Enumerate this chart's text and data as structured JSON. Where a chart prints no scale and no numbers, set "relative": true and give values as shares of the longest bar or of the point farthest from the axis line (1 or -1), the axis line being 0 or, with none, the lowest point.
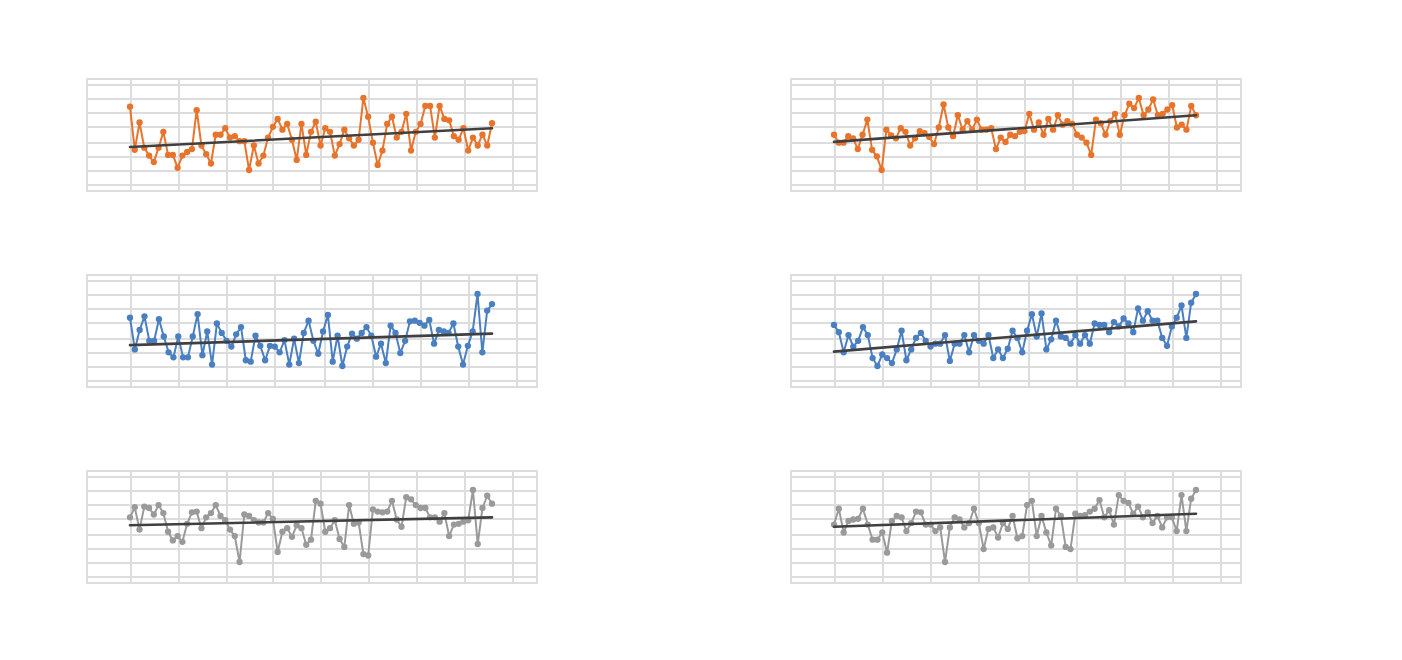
{
  "chart_data": [
    {
      "type": "line",
      "relative": true,
      "grid": true,
      "tick_labels": false,
      "marker": "circle",
      "line_style": "solid",
      "categories": [
        null,
        null,
        null,
        null,
        null,
        null,
        null,
        null,
        null,
        null,
        null,
        null,
        null,
        null,
        null,
        null,
        null,
        null,
        null,
        null,
        null,
        null,
        null,
        null,
        null,
        null,
        null,
        null,
        null,
        null,
        null,
        null,
        null,
        null,
        null,
        null,
        null,
        null,
        null,
        null,
        null,
        null,
        null,
        null,
        null,
        null,
        null,
        null,
        null,
        null,
        null,
        null,
        null,
        null,
        null,
        null,
        null,
        null,
        null,
        null,
        null,
        null,
        null,
        null,
        null,
        null,
        null,
        null,
        null,
        null,
        null,
        null,
        null,
        null,
        null,
        null,
        null
      ],
      "series": [
        {
          "color": "#e8742c",
          "values": [
            0.88,
            0.28,
            0.66,
            0.31,
            0.2,
            0.11,
            0.31,
            0.53,
            0.21,
            0.21,
            0.03,
            0.2,
            0.25,
            0.29,
            0.83,
            0.34,
            0.22,
            0.09,
            0.49,
            0.49,
            0.58,
            0.45,
            0.47,
            0.4,
            0.4,
            0,
            0.34,
            0.09,
            0.2,
            0.45,
            0.6,
            0.71,
            0.56,
            0.64,
            0.42,
            0.14,
            0.64,
            0.21,
            0.53,
            0.67,
            0.34,
            0.58,
            0.53,
            0.2,
            0.36,
            0.56,
            0.44,
            0.34,
            0.42,
            1,
            0.74,
            0.38,
            0.07,
            0.27,
            0.64,
            0.74,
            0.45,
            0.53,
            0.78,
            0.27,
            0.53,
            0.64,
            0.89,
            0.89,
            0.45,
            0.89,
            0.71,
            0.69,
            0.47,
            0.42,
            0.58,
            0.27,
            0.45,
            0.34,
            0.49,
            0.34,
            0.65
          ]
        },
        {
          "type": "line",
          "marker": "none",
          "color": "#404040",
          "values": [
            0.32,
            null,
            null,
            null,
            null,
            null,
            null,
            null,
            null,
            null,
            null,
            null,
            null,
            null,
            null,
            null,
            null,
            null,
            null,
            null,
            null,
            null,
            null,
            null,
            null,
            null,
            null,
            null,
            null,
            null,
            null,
            null,
            null,
            null,
            null,
            null,
            null,
            null,
            null,
            null,
            null,
            null,
            null,
            null,
            null,
            null,
            null,
            null,
            null,
            null,
            null,
            null,
            null,
            null,
            null,
            null,
            null,
            null,
            null,
            null,
            null,
            null,
            null,
            null,
            null,
            null,
            null,
            null,
            null,
            null,
            null,
            null,
            null,
            null,
            null,
            null,
            0.58
          ]
        }
      ]
    },
    {
      "type": "line",
      "relative": true,
      "grid": true,
      "tick_labels": false,
      "marker": "circle",
      "line_style": "solid",
      "categories": [
        null,
        null,
        null,
        null,
        null,
        null,
        null,
        null,
        null,
        null,
        null,
        null,
        null,
        null,
        null,
        null,
        null,
        null,
        null,
        null,
        null,
        null,
        null,
        null,
        null,
        null,
        null,
        null,
        null,
        null,
        null,
        null,
        null,
        null,
        null,
        null,
        null,
        null,
        null,
        null,
        null,
        null,
        null,
        null,
        null,
        null,
        null,
        null,
        null,
        null,
        null,
        null,
        null,
        null,
        null,
        null,
        null,
        null,
        null,
        null,
        null,
        null,
        null,
        null,
        null,
        null,
        null,
        null,
        null,
        null,
        null,
        null,
        null,
        null,
        null,
        null,
        null
      ],
      "series": [
        {
          "color": "#e8742c",
          "values": [
            0.49,
            0.38,
            0.38,
            0.47,
            0.44,
            0.29,
            0.49,
            0.7,
            0.28,
            0.19,
            0,
            0.56,
            0.48,
            0.44,
            0.58,
            0.53,
            0.34,
            0.44,
            0.54,
            0.51,
            0.46,
            0.36,
            0.59,
            0.91,
            0.59,
            0.47,
            0.76,
            0.56,
            0.68,
            0.56,
            0.7,
            0.56,
            0.56,
            0.58,
            0.29,
            0.45,
            0.39,
            0.49,
            0.47,
            0.53,
            0.54,
            0.78,
            0.56,
            0.66,
            0.49,
            0.71,
            0.56,
            0.76,
            0.63,
            0.68,
            0.64,
            0.49,
            0.45,
            0.38,
            0.21,
            0.7,
            0.65,
            0.49,
            0.68,
            0.78,
            0.49,
            0.76,
            0.92,
            0.86,
            1,
            0.76,
            0.84,
            0.98,
            0.76,
            0.78,
            0.84,
            0.9,
            0.59,
            0.63,
            0.56,
            0.89,
            0.76
          ]
        },
        {
          "type": "line",
          "marker": "none",
          "color": "#404040",
          "values": [
            0.39,
            null,
            null,
            null,
            null,
            null,
            null,
            null,
            null,
            null,
            null,
            null,
            null,
            null,
            null,
            null,
            null,
            null,
            null,
            null,
            null,
            null,
            null,
            null,
            null,
            null,
            null,
            null,
            null,
            null,
            null,
            null,
            null,
            null,
            null,
            null,
            null,
            null,
            null,
            null,
            null,
            null,
            null,
            null,
            null,
            null,
            null,
            null,
            null,
            null,
            null,
            null,
            null,
            null,
            null,
            null,
            null,
            null,
            null,
            null,
            null,
            null,
            null,
            null,
            null,
            null,
            null,
            null,
            null,
            null,
            null,
            null,
            null,
            null,
            null,
            null,
            0.76
          ]
        }
      ]
    },
    {
      "type": "line",
      "relative": true,
      "grid": true,
      "tick_labels": false,
      "marker": "circle",
      "line_style": "solid",
      "categories": [
        null,
        null,
        null,
        null,
        null,
        null,
        null,
        null,
        null,
        null,
        null,
        null,
        null,
        null,
        null,
        null,
        null,
        null,
        null,
        null,
        null,
        null,
        null,
        null,
        null,
        null,
        null,
        null,
        null,
        null,
        null,
        null,
        null,
        null,
        null,
        null,
        null,
        null,
        null,
        null,
        null,
        null,
        null,
        null,
        null,
        null,
        null,
        null,
        null,
        null,
        null,
        null,
        null,
        null,
        null,
        null,
        null,
        null,
        null,
        null,
        null,
        null,
        null,
        null,
        null,
        null,
        null,
        null,
        null,
        null,
        null,
        null,
        null,
        null,
        null,
        null
      ],
      "series": [
        {
          "color": "#4a7fc1",
          "values": [
            0.67,
            0.23,
            0.5,
            0.69,
            0.35,
            0.35,
            0.65,
            0.41,
            0.19,
            0.12,
            0.41,
            0.12,
            0.12,
            0.41,
            0.72,
            0.15,
            0.48,
            0.02,
            0.59,
            0.46,
            0.35,
            0.27,
            0.44,
            0.54,
            0.08,
            0.06,
            0.42,
            0.28,
            0.08,
            0.28,
            0.27,
            0.19,
            0.36,
            0.02,
            0.38,
            0.04,
            0.46,
            0.63,
            0.35,
            0.17,
            0.48,
            0.71,
            0.06,
            0.42,
            0,
            0.27,
            0.45,
            0.38,
            0.46,
            0.54,
            0.42,
            0.13,
            0.31,
            0.04,
            0.56,
            0.46,
            0.18,
            0.35,
            0.62,
            0.63,
            0.6,
            0.56,
            0.64,
            0.31,
            0.5,
            0.48,
            0.46,
            0.59,
            0.27,
            0.02,
            0.28,
            0.48,
            1,
            0.19,
            0.77,
            0.86
          ]
        },
        {
          "type": "line",
          "marker": "none",
          "color": "#404040",
          "values": [
            0.29,
            null,
            null,
            null,
            null,
            null,
            null,
            null,
            null,
            null,
            null,
            null,
            null,
            null,
            null,
            null,
            null,
            null,
            null,
            null,
            null,
            null,
            null,
            null,
            null,
            null,
            null,
            null,
            null,
            null,
            null,
            null,
            null,
            null,
            null,
            null,
            null,
            null,
            null,
            null,
            null,
            null,
            null,
            null,
            null,
            null,
            null,
            null,
            null,
            null,
            null,
            null,
            null,
            null,
            null,
            null,
            null,
            null,
            null,
            null,
            null,
            null,
            null,
            null,
            null,
            null,
            null,
            null,
            null,
            null,
            null,
            null,
            null,
            null,
            null,
            0.45
          ]
        }
      ]
    },
    {
      "type": "line",
      "relative": true,
      "grid": true,
      "tick_labels": false,
      "marker": "circle",
      "line_style": "solid",
      "categories": [
        null,
        null,
        null,
        null,
        null,
        null,
        null,
        null,
        null,
        null,
        null,
        null,
        null,
        null,
        null,
        null,
        null,
        null,
        null,
        null,
        null,
        null,
        null,
        null,
        null,
        null,
        null,
        null,
        null,
        null,
        null,
        null,
        null,
        null,
        null,
        null,
        null,
        null,
        null,
        null,
        null,
        null,
        null,
        null,
        null,
        null,
        null,
        null,
        null,
        null,
        null,
        null,
        null,
        null,
        null,
        null,
        null,
        null,
        null,
        null,
        null,
        null,
        null,
        null,
        null,
        null,
        null,
        null,
        null,
        null,
        null,
        null,
        null,
        null,
        null,
        null
      ],
      "series": [
        {
          "color": "#4a7fc1",
          "values": [
            0.57,
            0.47,
            0.19,
            0.43,
            0.27,
            0.35,
            0.54,
            0.43,
            0.11,
            0,
            0.16,
            0.11,
            0.04,
            0.23,
            0.49,
            0.08,
            0.23,
            0.39,
            0.46,
            0.35,
            0.27,
            0.31,
            0.31,
            0.43,
            0.07,
            0.31,
            0.31,
            0.43,
            0.19,
            0.43,
            0.35,
            0.31,
            0.43,
            0.11,
            0.23,
            0.11,
            0.24,
            0.49,
            0.39,
            0.19,
            0.49,
            0.72,
            0.41,
            0.73,
            0.23,
            0.37,
            0.63,
            0.41,
            0.39,
            0.31,
            0.43,
            0.31,
            0.43,
            0.31,
            0.59,
            0.57,
            0.57,
            0.47,
            0.61,
            0.55,
            0.66,
            0.59,
            0.47,
            0.8,
            0.63,
            0.76,
            0.63,
            0.63,
            0.39,
            0.28,
            0.55,
            0.67,
            0.84,
            0.39,
            0.88,
            1
          ]
        },
        {
          "type": "line",
          "marker": "none",
          "color": "#404040",
          "values": [
            0.2,
            null,
            null,
            null,
            null,
            null,
            null,
            null,
            null,
            null,
            null,
            null,
            null,
            null,
            null,
            null,
            null,
            null,
            null,
            null,
            null,
            null,
            null,
            null,
            null,
            null,
            null,
            null,
            null,
            null,
            null,
            null,
            null,
            null,
            null,
            null,
            null,
            null,
            null,
            null,
            null,
            null,
            null,
            null,
            null,
            null,
            null,
            null,
            null,
            null,
            null,
            null,
            null,
            null,
            null,
            null,
            null,
            null,
            null,
            null,
            null,
            null,
            null,
            null,
            null,
            null,
            null,
            null,
            null,
            null,
            null,
            null,
            null,
            null,
            null,
            0.62
          ]
        }
      ]
    },
    {
      "type": "line",
      "relative": true,
      "grid": true,
      "tick_labels": false,
      "marker": "circle",
      "line_style": "solid",
      "categories": [
        null,
        null,
        null,
        null,
        null,
        null,
        null,
        null,
        null,
        null,
        null,
        null,
        null,
        null,
        null,
        null,
        null,
        null,
        null,
        null,
        null,
        null,
        null,
        null,
        null,
        null,
        null,
        null,
        null,
        null,
        null,
        null,
        null,
        null,
        null,
        null,
        null,
        null,
        null,
        null,
        null,
        null,
        null,
        null,
        null,
        null,
        null,
        null,
        null,
        null,
        null,
        null,
        null,
        null,
        null,
        null,
        null,
        null,
        null,
        null,
        null,
        null,
        null,
        null,
        null,
        null,
        null,
        null,
        null,
        null,
        null,
        null,
        null,
        null,
        null,
        null,
        null
      ],
      "series": [
        {
          "color": "#9a9a9a",
          "values": [
            0.62,
            0.76,
            0.45,
            0.77,
            0.75,
            0.66,
            0.79,
            0.68,
            0.42,
            0.3,
            0.36,
            0.28,
            0.53,
            0.69,
            0.7,
            0.47,
            0.62,
            0.68,
            0.79,
            0.64,
            0.58,
            0.45,
            0.36,
            0,
            0.66,
            0.64,
            0.58,
            0.55,
            0.55,
            0.68,
            0.6,
            0.14,
            0.42,
            0.47,
            0.35,
            0.51,
            0.47,
            0.24,
            0.31,
            0.85,
            0.81,
            0.42,
            0.47,
            0.58,
            0.32,
            0.21,
            0.79,
            0.53,
            0.55,
            0.11,
            0.09,
            0.73,
            0.7,
            0.69,
            0.7,
            0.85,
            0.59,
            0.49,
            0.9,
            0.87,
            0.79,
            0.75,
            0.75,
            0.62,
            0.62,
            0.56,
            0.68,
            0.36,
            0.52,
            0.53,
            0.56,
            0.58,
            1,
            0.25,
            0.75,
            0.92,
            0.81
          ]
        },
        {
          "type": "line",
          "marker": "none",
          "color": "#404040",
          "values": [
            0.51,
            null,
            null,
            null,
            null,
            null,
            null,
            null,
            null,
            null,
            null,
            null,
            null,
            null,
            null,
            null,
            null,
            null,
            null,
            null,
            null,
            null,
            null,
            null,
            null,
            null,
            null,
            null,
            null,
            null,
            null,
            null,
            null,
            null,
            null,
            null,
            null,
            null,
            null,
            null,
            null,
            null,
            null,
            null,
            null,
            null,
            null,
            null,
            null,
            null,
            null,
            null,
            null,
            null,
            null,
            null,
            null,
            null,
            null,
            null,
            null,
            null,
            null,
            null,
            null,
            null,
            null,
            null,
            null,
            null,
            null,
            null,
            null,
            null,
            null,
            null,
            0.62
          ]
        }
      ]
    },
    {
      "type": "line",
      "relative": true,
      "grid": true,
      "tick_labels": false,
      "marker": "circle",
      "line_style": "solid",
      "categories": [
        null,
        null,
        null,
        null,
        null,
        null,
        null,
        null,
        null,
        null,
        null,
        null,
        null,
        null,
        null,
        null,
        null,
        null,
        null,
        null,
        null,
        null,
        null,
        null,
        null,
        null,
        null,
        null,
        null,
        null,
        null,
        null,
        null,
        null,
        null,
        null,
        null,
        null,
        null,
        null,
        null,
        null,
        null,
        null,
        null,
        null,
        null,
        null,
        null,
        null,
        null,
        null,
        null,
        null,
        null,
        null,
        null,
        null,
        null,
        null,
        null,
        null,
        null,
        null,
        null,
        null,
        null,
        null,
        null,
        null,
        null,
        null,
        null,
        null,
        null,
        null
      ],
      "series": [
        {
          "color": "#9a9a9a",
          "values": [
            0.52,
            0.74,
            0.41,
            0.57,
            0.59,
            0.6,
            0.74,
            0.52,
            0.31,
            0.31,
            0.41,
            0.13,
            0.57,
            0.64,
            0.62,
            0.43,
            0.54,
            0.7,
            0.69,
            0.52,
            0.52,
            0.43,
            0.48,
            0,
            0.48,
            0.62,
            0.59,
            0.48,
            0.54,
            0.74,
            0.54,
            0.18,
            0.46,
            0.48,
            0.34,
            0.54,
            0.46,
            0.64,
            0.33,
            0.36,
            0.79,
            0.85,
            0.36,
            0.64,
            0.41,
            0.23,
            0.74,
            0.64,
            0.21,
            0.18,
            0.67,
            0.64,
            0.65,
            0.7,
            0.74,
            0.86,
            0.62,
            0.72,
            0.52,
            0.93,
            0.85,
            0.82,
            0.67,
            0.77,
            0.62,
            0.69,
            0.54,
            0.64,
            0.48,
            0.62,
            0.62,
            0.43,
            0.93,
            0.43,
            0.88,
            1
          ]
        },
        {
          "type": "line",
          "marker": "none",
          "color": "#404040",
          "values": [
            0.49,
            null,
            null,
            null,
            null,
            null,
            null,
            null,
            null,
            null,
            null,
            null,
            null,
            null,
            null,
            null,
            null,
            null,
            null,
            null,
            null,
            null,
            null,
            null,
            null,
            null,
            null,
            null,
            null,
            null,
            null,
            null,
            null,
            null,
            null,
            null,
            null,
            null,
            null,
            null,
            null,
            null,
            null,
            null,
            null,
            null,
            null,
            null,
            null,
            null,
            null,
            null,
            null,
            null,
            null,
            null,
            null,
            null,
            null,
            null,
            null,
            null,
            null,
            null,
            null,
            null,
            null,
            null,
            null,
            null,
            null,
            null,
            null,
            null,
            null,
            0.67
          ]
        }
      ]
    }
  ]
}
